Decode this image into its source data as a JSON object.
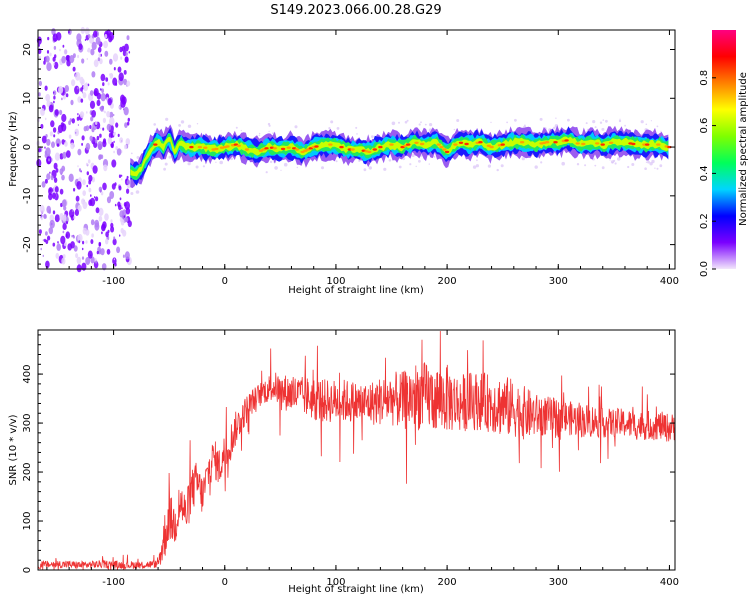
{
  "title": "S149.2023.066.00.28.G29",
  "chart_data": [
    {
      "type": "heatmap",
      "xlabel": "Height of straight line (km)",
      "ylabel": "Frequency (Hz)",
      "xlim": [
        -168,
        405
      ],
      "ylim": [
        -25,
        24
      ],
      "x_ticks": [
        -100,
        0,
        100,
        200,
        300,
        400
      ],
      "y_ticks": [
        -20,
        -10,
        0,
        10,
        20
      ],
      "noise_region_x": [
        -168,
        -85
      ],
      "ridge": {
        "x": [
          -85,
          -80,
          -75,
          -70,
          -65,
          -60,
          -55,
          -50,
          -45,
          -40,
          -35,
          -30,
          -20,
          -10,
          0,
          10,
          20,
          30,
          40,
          50,
          60,
          70,
          80,
          90,
          100,
          110,
          120,
          130,
          140,
          150,
          160,
          170,
          180,
          190,
          200,
          210,
          220,
          230,
          240,
          250,
          260,
          270,
          280,
          290,
          300,
          310,
          320,
          330,
          340,
          350,
          360,
          370,
          380,
          390,
          400
        ],
        "y": [
          -5,
          -5.5,
          -4.5,
          -2,
          0,
          1,
          0,
          2,
          -1,
          1,
          0,
          0,
          0,
          -0.5,
          0,
          0.5,
          -0.5,
          -1,
          0,
          -0.5,
          0,
          -1,
          0,
          0.5,
          0.5,
          -0.5,
          -0.5,
          -1,
          0,
          0.5,
          0,
          1,
          0.5,
          1,
          -1,
          1,
          0.5,
          1,
          0,
          0.5,
          1,
          1,
          0.5,
          1,
          1,
          1.5,
          0.5,
          1,
          0.5,
          1,
          1,
          0.5,
          0.5,
          0.5,
          0
        ]
      },
      "colorbar": {
        "label": "Normalized spectral amplitude",
        "ticks": [
          0.0,
          0.2,
          0.4,
          0.6,
          0.8
        ],
        "range": [
          0,
          1
        ],
        "colors": [
          "#f2e6fb",
          "#7a00ff",
          "#0000ff",
          "#00d5ff",
          "#00ff5a",
          "#80ff00",
          "#ffff00",
          "#ff8000",
          "#ff0000",
          "#ff0080"
        ]
      }
    },
    {
      "type": "line",
      "xlabel": "Height of straight line (km)",
      "ylabel": "SNR (10 * v/v)",
      "xlim": [
        -168,
        405
      ],
      "ylim": [
        0,
        490
      ],
      "x_ticks": [
        -100,
        0,
        100,
        200,
        300,
        400
      ],
      "y_ticks": [
        0,
        100,
        200,
        300,
        400
      ],
      "series": [
        {
          "color": "#ee3333",
          "x": [
            -168,
            -150,
            -130,
            -110,
            -90,
            -70,
            -60,
            -55,
            -50,
            -45,
            -40,
            -35,
            -30,
            -25,
            -20,
            -15,
            -10,
            -5,
            0,
            5,
            10,
            15,
            20,
            25,
            30,
            35,
            40,
            45,
            50,
            60,
            70,
            80,
            90,
            100,
            110,
            120,
            130,
            140,
            150,
            160,
            170,
            180,
            190,
            200,
            210,
            220,
            230,
            240,
            250,
            260,
            270,
            280,
            290,
            300,
            310,
            320,
            330,
            340,
            350,
            360,
            370,
            380,
            390,
            400,
            405
          ],
          "y": [
            10,
            12,
            10,
            12,
            10,
            11,
            12,
            60,
            110,
            90,
            140,
            110,
            160,
            180,
            150,
            200,
            230,
            210,
            240,
            260,
            290,
            310,
            330,
            345,
            355,
            365,
            370,
            375,
            365,
            360,
            355,
            350,
            345,
            345,
            345,
            340,
            340,
            345,
            350,
            345,
            355,
            355,
            350,
            350,
            340,
            345,
            345,
            340,
            335,
            330,
            320,
            315,
            315,
            310,
            310,
            305,
            305,
            300,
            300,
            300,
            295,
            295,
            295,
            290,
            290
          ],
          "amplitude": [
            8,
            8,
            8,
            8,
            8,
            8,
            8,
            50,
            50,
            45,
            45,
            45,
            45,
            45,
            40,
            40,
            40,
            40,
            40,
            40,
            35,
            30,
            30,
            25,
            25,
            25,
            30,
            30,
            35,
            40,
            40,
            45,
            45,
            45,
            45,
            45,
            45,
            50,
            55,
            60,
            70,
            70,
            70,
            70,
            60,
            60,
            60,
            60,
            65,
            60,
            55,
            45,
            40,
            40,
            35,
            35,
            35,
            30,
            30,
            30,
            30,
            30,
            30,
            30,
            30
          ]
        }
      ]
    }
  ]
}
